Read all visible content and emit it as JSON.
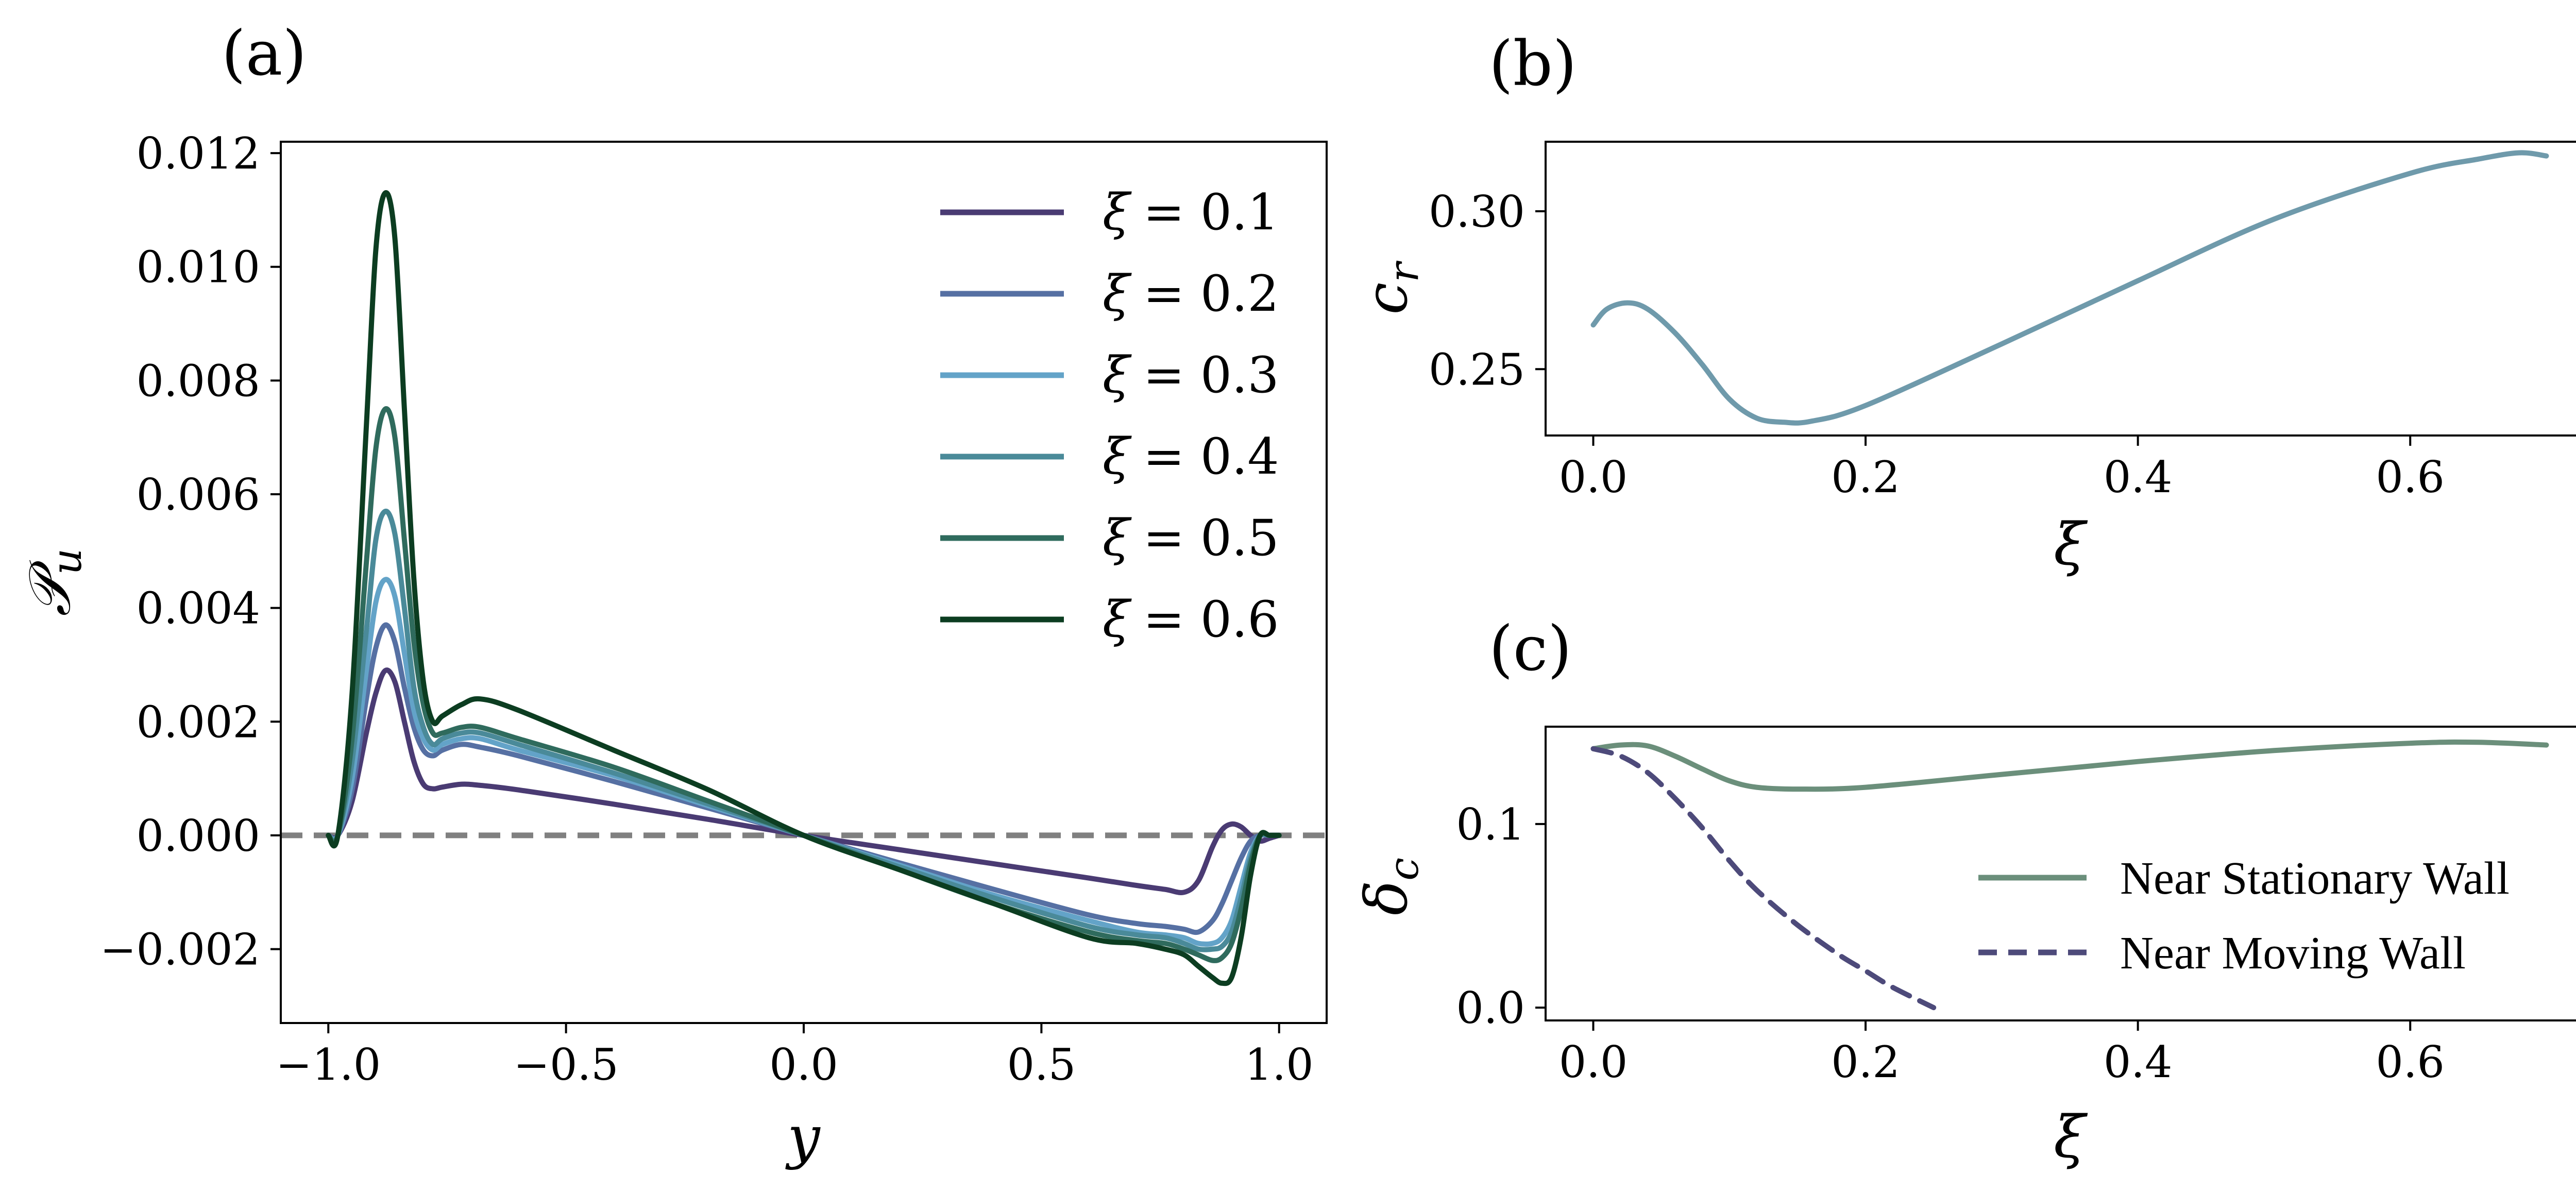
{
  "chart_data": [
    {
      "id": "a",
      "panel_label": "(a)",
      "type": "line",
      "xlabel": "y",
      "ylabel": "𝒫u",
      "ylabel_main": "𝒫",
      "ylabel_sub": "u",
      "xlim": [
        -1.1,
        1.1
      ],
      "ylim": [
        -0.0033,
        0.0122
      ],
      "xticks": [
        -1.0,
        -0.5,
        0.0,
        0.5,
        1.0
      ],
      "xtick_labels": [
        "−1.0",
        "−0.5",
        "0.0",
        "0.5",
        "1.0"
      ],
      "yticks": [
        -0.002,
        0.0,
        0.002,
        0.004,
        0.006,
        0.008,
        0.01,
        0.012
      ],
      "ytick_labels": [
        "−0.002",
        "0.000",
        "0.002",
        "0.004",
        "0.006",
        "0.008",
        "0.010",
        "0.012"
      ],
      "reference_line": {
        "y": 0.0,
        "style": "dashed",
        "color": "#808080"
      },
      "legend_position": "top-right",
      "series": [
        {
          "name": "ξ = 0.1",
          "xi": "ξ",
          "eq": "= 0.1",
          "color": "#4a3b73",
          "x": [
            -1.0,
            -0.98,
            -0.95,
            -0.92,
            -0.9,
            -0.88,
            -0.86,
            -0.84,
            -0.82,
            -0.8,
            -0.78,
            -0.76,
            -0.72,
            -0.68,
            -0.6,
            -0.4,
            -0.2,
            0.0,
            0.2,
            0.4,
            0.6,
            0.7,
            0.76,
            0.8,
            0.83,
            0.86,
            0.88,
            0.9,
            0.92,
            0.94,
            0.96,
            0.98,
            1.0
          ],
          "y": [
            0.0,
            0.0,
            0.0006,
            0.0018,
            0.0025,
            0.0029,
            0.0027,
            0.002,
            0.0013,
            0.0009,
            0.00082,
            0.00085,
            0.0009,
            0.00088,
            0.0008,
            0.00055,
            0.00028,
            0.0,
            -0.00025,
            -0.0005,
            -0.00075,
            -0.00088,
            -0.00095,
            -0.001,
            -0.0008,
            -0.0002,
            0.0001,
            0.0002,
            0.00015,
            0.0,
            -0.0001,
            -5e-05,
            0.0
          ]
        },
        {
          "name": "ξ = 0.2",
          "xi": "ξ",
          "eq": "= 0.2",
          "color": "#5670a3",
          "x": [
            -1.0,
            -0.98,
            -0.95,
            -0.92,
            -0.9,
            -0.88,
            -0.86,
            -0.84,
            -0.82,
            -0.8,
            -0.78,
            -0.76,
            -0.72,
            -0.68,
            -0.6,
            -0.4,
            -0.2,
            0.0,
            0.2,
            0.4,
            0.6,
            0.7,
            0.76,
            0.8,
            0.83,
            0.86,
            0.88,
            0.9,
            0.92,
            0.94,
            0.96,
            0.98,
            1.0
          ],
          "y": [
            0.0,
            0.0,
            0.0008,
            0.0024,
            0.0033,
            0.0037,
            0.0034,
            0.0026,
            0.0019,
            0.0015,
            0.0014,
            0.0015,
            0.0016,
            0.00155,
            0.0014,
            0.00095,
            0.00048,
            0.0,
            -0.00048,
            -0.00095,
            -0.0014,
            -0.00155,
            -0.0016,
            -0.00165,
            -0.0017,
            -0.0015,
            -0.0012,
            -0.0008,
            -0.0004,
            -0.0001,
            0.0,
            0.0,
            0.0
          ]
        },
        {
          "name": "ξ = 0.3",
          "xi": "ξ",
          "eq": "= 0.3",
          "color": "#63a3c8",
          "x": [
            -1.0,
            -0.98,
            -0.95,
            -0.92,
            -0.9,
            -0.88,
            -0.86,
            -0.84,
            -0.82,
            -0.8,
            -0.78,
            -0.76,
            -0.72,
            -0.68,
            -0.6,
            -0.4,
            -0.2,
            0.0,
            0.2,
            0.4,
            0.6,
            0.7,
            0.76,
            0.8,
            0.83,
            0.86,
            0.88,
            0.9,
            0.92,
            0.94,
            0.96,
            0.98,
            1.0
          ],
          "y": [
            0.0,
            0.0,
            0.001,
            0.0029,
            0.0041,
            0.0045,
            0.0042,
            0.0032,
            0.0022,
            0.0017,
            0.0015,
            0.0016,
            0.0017,
            0.0017,
            0.0015,
            0.00105,
            0.00052,
            0.0,
            -0.00052,
            -0.00105,
            -0.0015,
            -0.0017,
            -0.00175,
            -0.0018,
            -0.0019,
            -0.0019,
            -0.0018,
            -0.0015,
            -0.0009,
            -0.0003,
            0.0,
            0.0,
            0.0
          ]
        },
        {
          "name": "ξ = 0.4",
          "xi": "ξ",
          "eq": "= 0.4",
          "color": "#4a8a99",
          "x": [
            -1.0,
            -0.98,
            -0.95,
            -0.92,
            -0.9,
            -0.88,
            -0.86,
            -0.84,
            -0.82,
            -0.8,
            -0.78,
            -0.76,
            -0.72,
            -0.68,
            -0.6,
            -0.4,
            -0.2,
            0.0,
            0.2,
            0.4,
            0.6,
            0.7,
            0.76,
            0.8,
            0.83,
            0.86,
            0.88,
            0.9,
            0.92,
            0.94,
            0.96,
            0.98,
            1.0
          ],
          "y": [
            0.0,
            0.0,
            0.0013,
            0.0036,
            0.0052,
            0.0057,
            0.0053,
            0.004,
            0.0026,
            0.0019,
            0.0016,
            0.0017,
            0.0018,
            0.0018,
            0.0016,
            0.0011,
            0.00055,
            0.0,
            -0.00055,
            -0.0011,
            -0.0016,
            -0.00175,
            -0.0018,
            -0.0019,
            -0.002,
            -0.002,
            -0.00195,
            -0.0017,
            -0.0011,
            -0.0004,
            0.0,
            0.0,
            0.0
          ]
        },
        {
          "name": "ξ = 0.5",
          "xi": "ξ",
          "eq": "= 0.5",
          "color": "#2f6b5d",
          "x": [
            -1.0,
            -0.98,
            -0.95,
            -0.92,
            -0.9,
            -0.88,
            -0.86,
            -0.84,
            -0.82,
            -0.8,
            -0.78,
            -0.76,
            -0.72,
            -0.68,
            -0.6,
            -0.4,
            -0.2,
            0.0,
            0.2,
            0.4,
            0.6,
            0.7,
            0.76,
            0.8,
            0.83,
            0.86,
            0.88,
            0.9,
            0.92,
            0.94,
            0.96,
            0.98,
            1.0
          ],
          "y": [
            0.0,
            0.0,
            0.0017,
            0.0048,
            0.0068,
            0.0075,
            0.007,
            0.0052,
            0.0034,
            0.0023,
            0.0018,
            0.0018,
            0.0019,
            0.0019,
            0.0017,
            0.0012,
            0.0006,
            0.0,
            -0.0006,
            -0.0012,
            -0.0017,
            -0.00185,
            -0.0019,
            -0.002,
            -0.0021,
            -0.0022,
            -0.00215,
            -0.0019,
            -0.0013,
            -0.0005,
            0.0,
            0.0,
            0.0
          ]
        },
        {
          "name": "ξ = 0.6",
          "xi": "ξ",
          "eq": "= 0.6",
          "color": "#0c3d21",
          "x": [
            -1.0,
            -0.98,
            -0.95,
            -0.92,
            -0.9,
            -0.88,
            -0.86,
            -0.84,
            -0.82,
            -0.8,
            -0.78,
            -0.76,
            -0.72,
            -0.68,
            -0.6,
            -0.4,
            -0.2,
            0.0,
            0.2,
            0.4,
            0.6,
            0.7,
            0.76,
            0.8,
            0.83,
            0.86,
            0.88,
            0.9,
            0.92,
            0.94,
            0.96,
            0.98,
            1.0
          ],
          "y": [
            0.0,
            0.0,
            0.0025,
            0.0072,
            0.0103,
            0.0113,
            0.0105,
            0.0075,
            0.0045,
            0.0027,
            0.002,
            0.0021,
            0.0023,
            0.0024,
            0.0022,
            0.0015,
            0.0008,
            0.0,
            -0.0006,
            -0.0012,
            -0.0018,
            -0.0019,
            -0.002,
            -0.0021,
            -0.0023,
            -0.0025,
            -0.0026,
            -0.0025,
            -0.0018,
            -0.0007,
            0.0,
            0.0,
            0.0
          ]
        }
      ]
    },
    {
      "id": "b",
      "panel_label": "(b)",
      "type": "line",
      "xlabel": "ξ",
      "ylabel": "cr",
      "ylabel_main": "c",
      "ylabel_sub": "r",
      "xlim": [
        -0.035,
        0.735
      ],
      "ylim": [
        0.229,
        0.322
      ],
      "xticks": [
        0.0,
        0.2,
        0.4,
        0.6
      ],
      "xtick_labels": [
        "0.0",
        "0.2",
        "0.4",
        "0.6"
      ],
      "yticks": [
        0.25,
        0.3
      ],
      "ytick_labels": [
        "0.25",
        "0.30"
      ],
      "series": [
        {
          "name": "c_r",
          "color": "#6f9aab",
          "x": [
            0.0,
            0.01,
            0.025,
            0.04,
            0.06,
            0.08,
            0.1,
            0.12,
            0.14,
            0.16,
            0.2,
            0.3,
            0.4,
            0.5,
            0.6,
            0.65,
            0.68,
            0.7
          ],
          "y": [
            0.264,
            0.269,
            0.271,
            0.269,
            0.2615,
            0.2515,
            0.2405,
            0.2345,
            0.2332,
            0.2335,
            0.2385,
            0.258,
            0.278,
            0.2975,
            0.312,
            0.3165,
            0.3185,
            0.3175
          ]
        }
      ]
    },
    {
      "id": "c",
      "panel_label": "(c)",
      "type": "line",
      "xlabel": "ξ",
      "ylabel": "δc",
      "ylabel_main": "δ",
      "ylabel_sub": "c",
      "xlim": [
        -0.035,
        0.735
      ],
      "ylim": [
        -0.007,
        0.153
      ],
      "xticks": [
        0.0,
        0.2,
        0.4,
        0.6
      ],
      "xtick_labels": [
        "0.0",
        "0.2",
        "0.4",
        "0.6"
      ],
      "yticks": [
        0.0,
        0.1
      ],
      "ytick_labels": [
        "0.0",
        "0.1"
      ],
      "legend_position": "bottom-right",
      "series": [
        {
          "name": "Near Stationary Wall",
          "color": "#6b8f7b",
          "dash": false,
          "x": [
            0.0,
            0.02,
            0.04,
            0.06,
            0.08,
            0.1,
            0.12,
            0.15,
            0.2,
            0.3,
            0.4,
            0.5,
            0.6,
            0.65,
            0.7
          ],
          "y": [
            0.141,
            0.143,
            0.1425,
            0.137,
            0.13,
            0.1235,
            0.12,
            0.119,
            0.12,
            0.127,
            0.134,
            0.14,
            0.144,
            0.1445,
            0.143
          ]
        },
        {
          "name": "Near Moving Wall",
          "color": "#4d4a7a",
          "dash": true,
          "x": [
            0.0,
            0.02,
            0.04,
            0.06,
            0.08,
            0.1,
            0.12,
            0.15,
            0.18,
            0.2,
            0.22,
            0.25
          ],
          "y": [
            0.141,
            0.137,
            0.128,
            0.114,
            0.098,
            0.08,
            0.064,
            0.045,
            0.029,
            0.02,
            0.011,
            0.0
          ]
        }
      ]
    }
  ]
}
